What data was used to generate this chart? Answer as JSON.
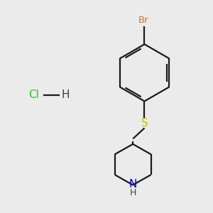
{
  "background_color": "#ebebeb",
  "bond_color": "#1a1a1a",
  "br_color": "#cc7722",
  "s_color": "#ccbb00",
  "n_color": "#0000cc",
  "cl_color": "#22cc22",
  "h_color": "#404040",
  "line_width": 1.6,
  "figsize": [
    3.0,
    3.0
  ],
  "dpi": 100,
  "xlim": [
    0,
    10
  ],
  "ylim": [
    0,
    10
  ]
}
